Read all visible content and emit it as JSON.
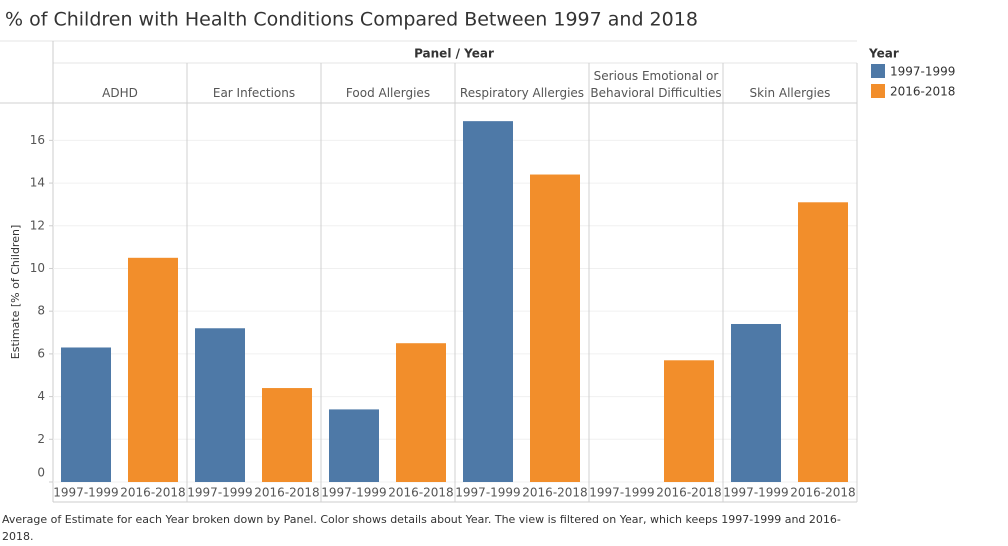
{
  "chart_data": {
    "type": "bar",
    "title": "% of Children with Health Conditions Compared Between 1997 and 2018",
    "column_header": "Panel / Year",
    "categories": [
      "ADHD",
      "Ear Infections",
      "Food Allergies",
      "Respiratory Allergies",
      "Serious Emotional or Behavioral Difficulties",
      "Skin Allergies"
    ],
    "series": [
      {
        "name": "1997-1999",
        "color": "#4e79a7",
        "values": [
          6.3,
          7.2,
          3.4,
          16.9,
          null,
          7.4
        ]
      },
      {
        "name": "2016-2018",
        "color": "#f28e2b",
        "values": [
          10.5,
          4.4,
          6.5,
          14.4,
          5.7,
          13.1
        ]
      }
    ],
    "y_label": "Estimate [% of Children]",
    "ylim": [
      0,
      17.75
    ],
    "yticks": [
      0,
      2,
      4,
      6,
      8,
      10,
      12,
      14,
      16
    ],
    "grid": true,
    "legend_title": "Year",
    "caption": "Average of Estimate for each Year broken down by Panel.  Color shows details about Year. The view is filtered on Year, which keeps 1997-1999 and 2016-2018."
  }
}
